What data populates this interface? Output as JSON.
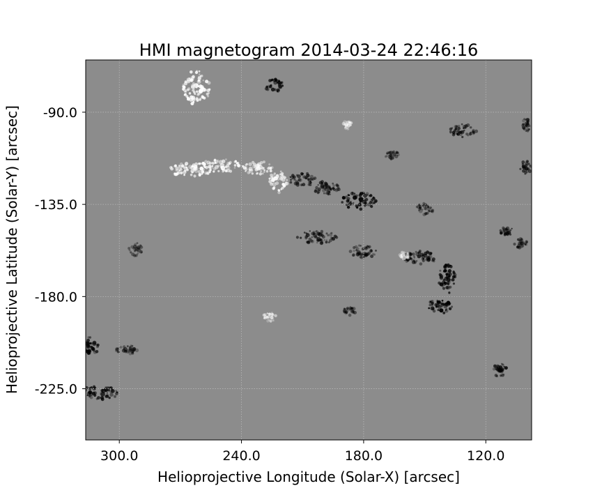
{
  "chart_data": {
    "type": "heatmap",
    "title": "HMI magnetogram 2014-03-24 22:46:16",
    "xlabel": "Helioprojective Longitude (Solar-X) [arcsec]",
    "ylabel": "Helioprojective Latitude (Solar-Y) [arcsec]",
    "xlim": [
      316.5,
      97.5
    ],
    "ylim": [
      -64.5,
      -250.0
    ],
    "x_ticks": [
      300.0,
      240.0,
      180.0,
      120.0
    ],
    "x_tick_labels": [
      "300.0",
      "240.0",
      "180.0",
      "120.0"
    ],
    "y_ticks": [
      -225.0,
      -180.0,
      -135.0,
      -90.0
    ],
    "y_tick_labels": [
      "-225.0",
      "-180.0",
      "-135.0",
      "-90.0"
    ],
    "grid": true,
    "colormap": "gray",
    "background_color": "#8c8c8c",
    "positive_color": "#ffffff",
    "negative_color": "#000000",
    "positive_regions": [
      {
        "x": 265,
        "y": -118,
        "rx": 10,
        "ry": 3,
        "strength": 0.95
      },
      {
        "x": 250,
        "y": -116,
        "rx": 9,
        "ry": 3,
        "strength": 0.9
      },
      {
        "x": 232,
        "y": -117,
        "rx": 7,
        "ry": 3,
        "strength": 0.8
      },
      {
        "x": 222,
        "y": -124,
        "rx": 4,
        "ry": 5,
        "strength": 0.85
      },
      {
        "x": 262,
        "y": -78,
        "rx": 6,
        "ry": 8,
        "strength": 0.95
      },
      {
        "x": 226,
        "y": -190,
        "rx": 3,
        "ry": 2,
        "strength": 0.6
      },
      {
        "x": 160,
        "y": -160,
        "rx": 2,
        "ry": 2,
        "strength": 0.5
      },
      {
        "x": 188,
        "y": -96,
        "rx": 2,
        "ry": 2,
        "strength": 0.5
      }
    ],
    "negative_regions": [
      {
        "x": 143,
        "y": -185,
        "rx": 6,
        "ry": 3,
        "strength": 0.95
      },
      {
        "x": 139,
        "y": -172,
        "rx": 4,
        "ry": 7,
        "strength": 0.9
      },
      {
        "x": 152,
        "y": -161,
        "rx": 8,
        "ry": 3,
        "strength": 0.75
      },
      {
        "x": 182,
        "y": -133,
        "rx": 8,
        "ry": 4,
        "strength": 0.9
      },
      {
        "x": 198,
        "y": -127,
        "rx": 6,
        "ry": 3,
        "strength": 0.7
      },
      {
        "x": 210,
        "y": -123,
        "rx": 6,
        "ry": 3,
        "strength": 0.7
      },
      {
        "x": 203,
        "y": -151,
        "rx": 9,
        "ry": 3,
        "strength": 0.65
      },
      {
        "x": 180,
        "y": -158,
        "rx": 6,
        "ry": 3,
        "strength": 0.6
      },
      {
        "x": 310,
        "y": -227,
        "rx": 9,
        "ry": 3,
        "strength": 0.8
      },
      {
        "x": 314,
        "y": -204,
        "rx": 4,
        "ry": 4,
        "strength": 0.85
      },
      {
        "x": 296,
        "y": -206,
        "rx": 5,
        "ry": 2,
        "strength": 0.6
      },
      {
        "x": 150,
        "y": -137,
        "rx": 4,
        "ry": 3,
        "strength": 0.55
      },
      {
        "x": 224,
        "y": -77,
        "rx": 4,
        "ry": 3,
        "strength": 0.8
      },
      {
        "x": 131,
        "y": -99,
        "rx": 6,
        "ry": 3,
        "strength": 0.8
      },
      {
        "x": 113,
        "y": -216,
        "rx": 3,
        "ry": 3,
        "strength": 0.75
      },
      {
        "x": 110,
        "y": -148,
        "rx": 3,
        "ry": 2,
        "strength": 0.7
      },
      {
        "x": 103,
        "y": -154,
        "rx": 3,
        "ry": 2,
        "strength": 0.6
      },
      {
        "x": 100,
        "y": -117,
        "rx": 3,
        "ry": 3,
        "strength": 0.65
      },
      {
        "x": 100,
        "y": -96,
        "rx": 2,
        "ry": 3,
        "strength": 0.6
      },
      {
        "x": 292,
        "y": -157,
        "rx": 3,
        "ry": 3,
        "strength": 0.5
      },
      {
        "x": 187,
        "y": -187,
        "rx": 3,
        "ry": 2,
        "strength": 0.55
      },
      {
        "x": 166,
        "y": -111,
        "rx": 3,
        "ry": 2,
        "strength": 0.5
      }
    ]
  }
}
